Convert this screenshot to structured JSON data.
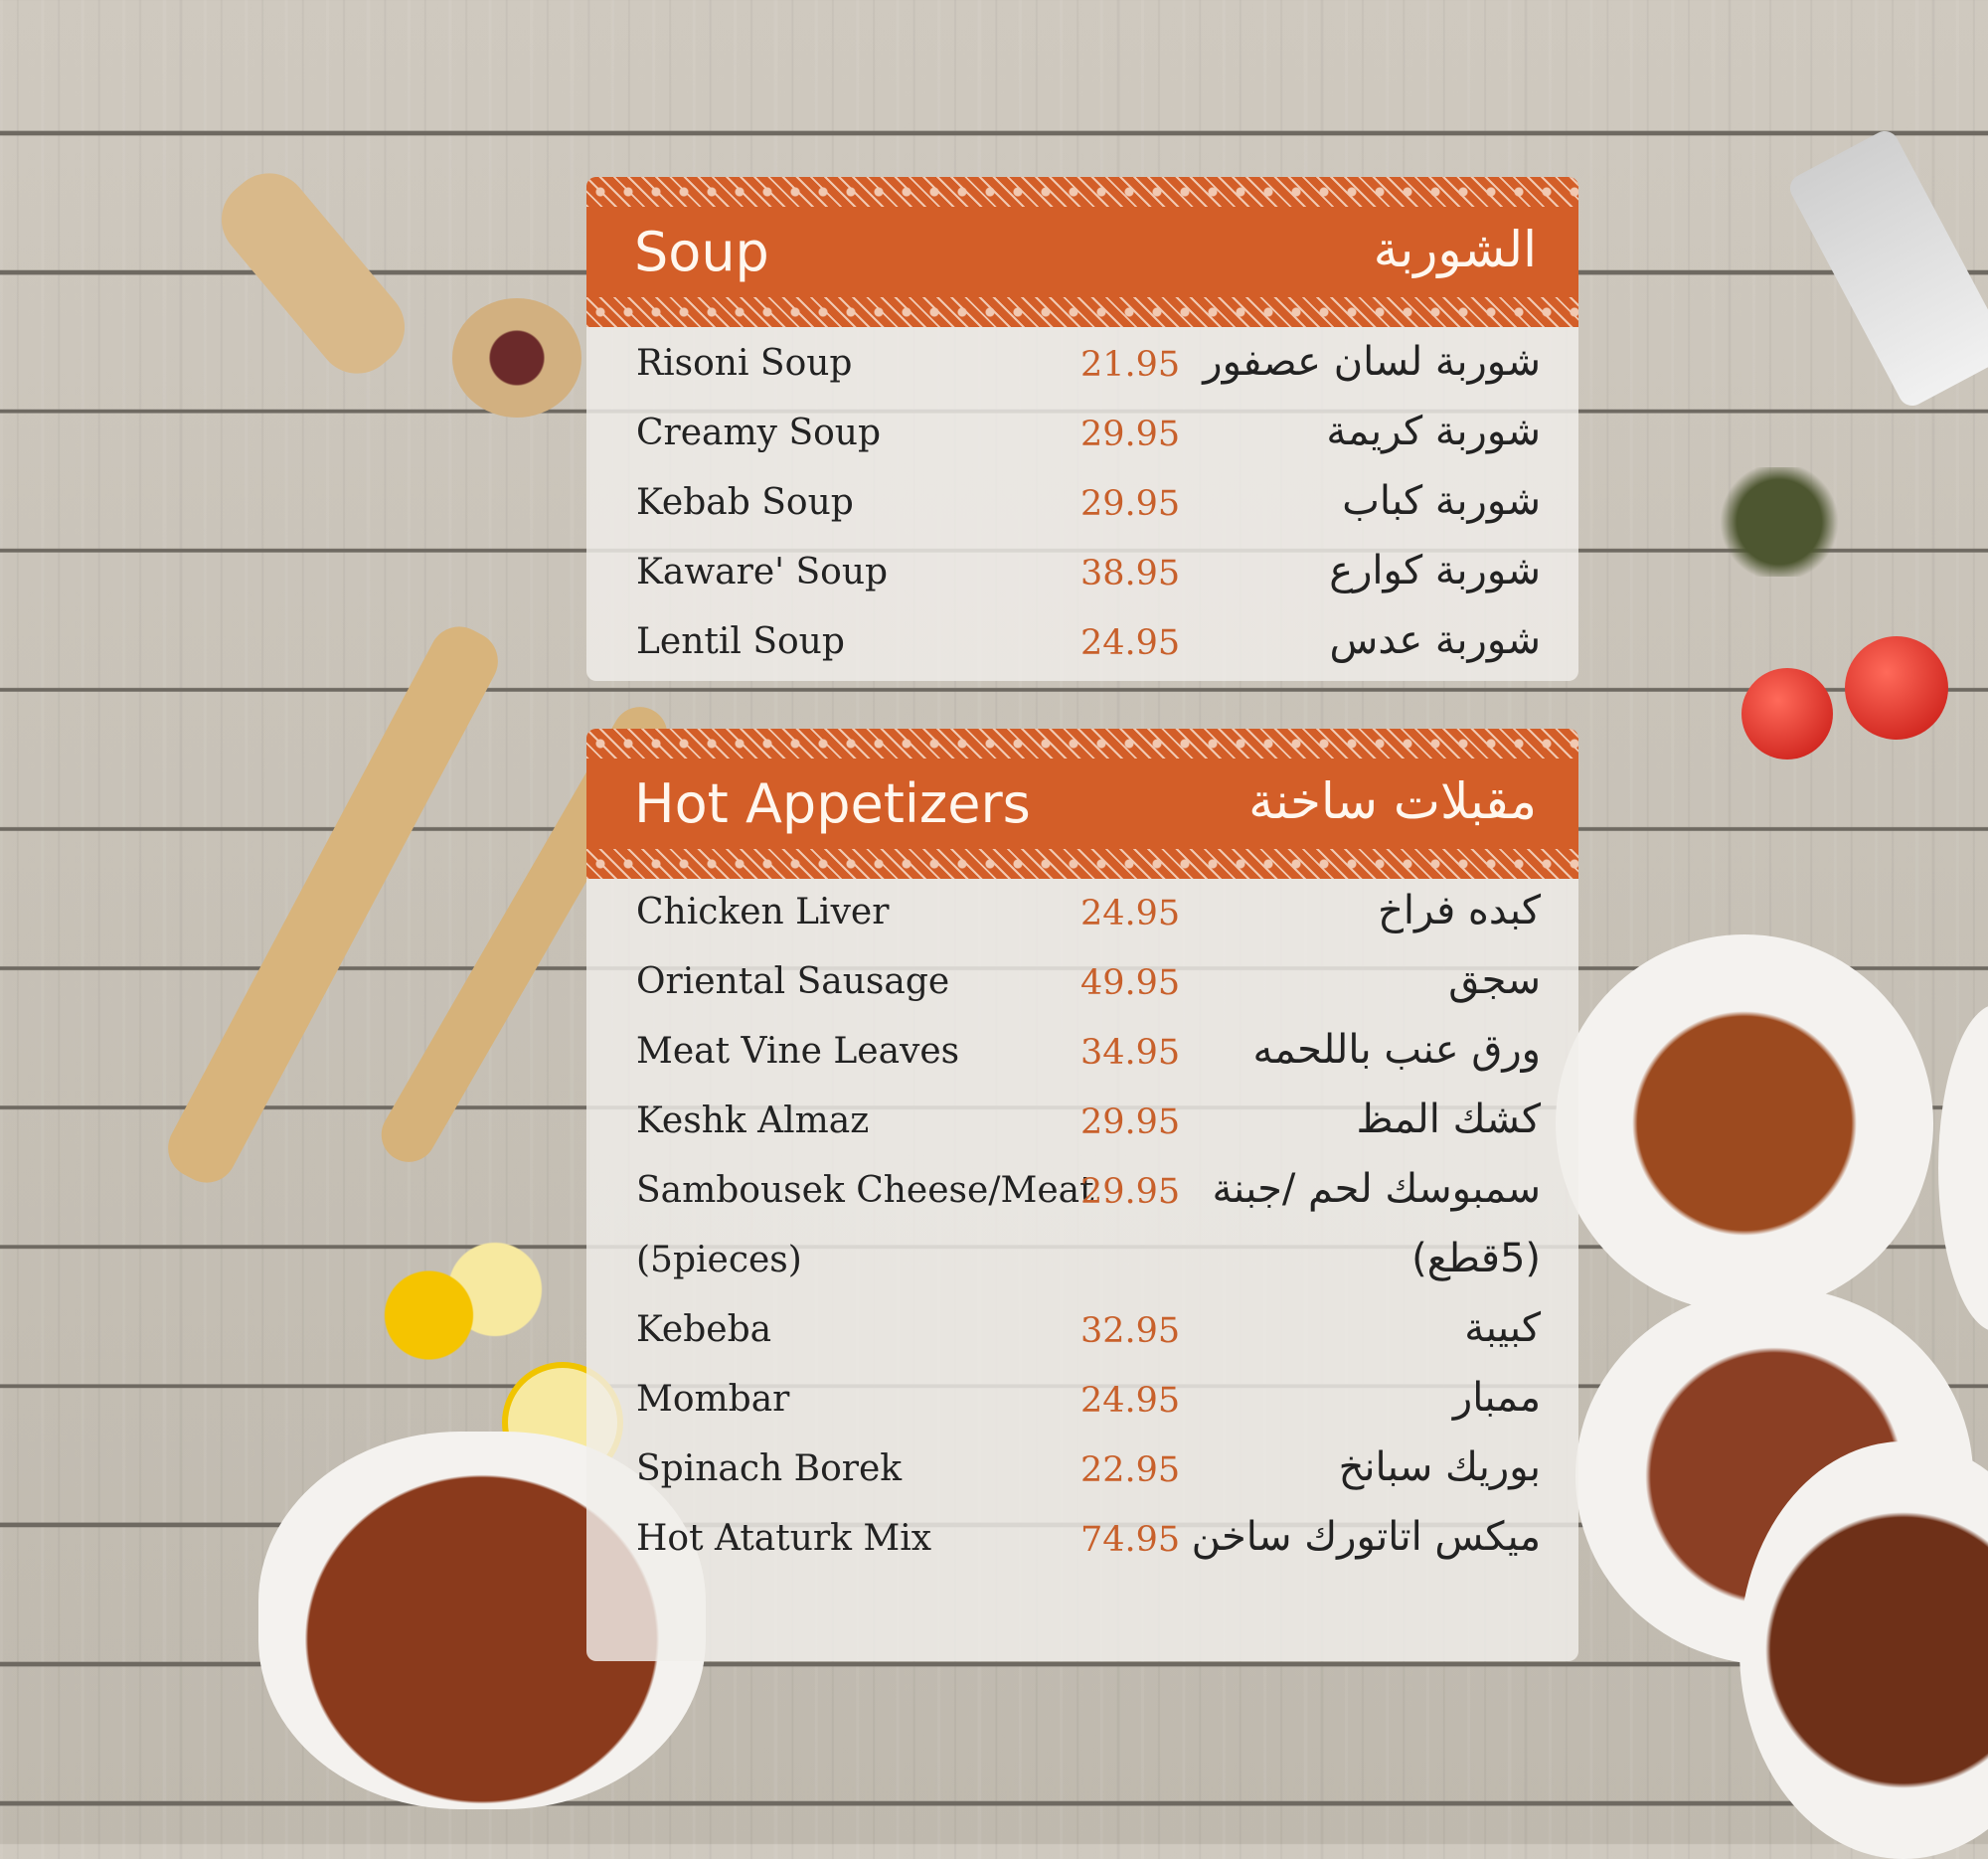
{
  "colors": {
    "header": "#d35e28",
    "price": "#c8602b",
    "text": "#222222"
  },
  "sections": [
    {
      "title_en": "Soup",
      "title_ar": "الشوربة",
      "items": [
        {
          "en": "Risoni Soup",
          "price": "21.95",
          "ar": "شوربة لسان عصفور"
        },
        {
          "en": "Creamy Soup",
          "price": "29.95",
          "ar": "شوربة كريمة"
        },
        {
          "en": "Kebab Soup",
          "price": "29.95",
          "ar": "شوربة كباب"
        },
        {
          "en": "Kaware' Soup",
          "price": "38.95",
          "ar": "شوربة كوارع"
        },
        {
          "en": "Lentil Soup",
          "price": "24.95",
          "ar": "شوربة عدس"
        }
      ]
    },
    {
      "title_en": "Hot Appetizers",
      "title_ar": "مقبلات ساخنة",
      "items": [
        {
          "en": "Chicken Liver",
          "price": "24.95",
          "ar": "كبده فراخ"
        },
        {
          "en": "Oriental Sausage",
          "price": "49.95",
          "ar": "سجق"
        },
        {
          "en": "Meat Vine Leaves",
          "price": "34.95",
          "ar": "ورق عنب باللحمه"
        },
        {
          "en": "Keshk Almaz",
          "price": "29.95",
          "ar": "كشك المظ"
        },
        {
          "en": "Sambousek Cheese/Meat",
          "price": "29.95",
          "ar": "سمبوسك لحم /جبنة"
        },
        {
          "en": "(5pieces)",
          "price": "",
          "ar": "(5قطع)"
        },
        {
          "en": "Kebeba",
          "price": "32.95",
          "ar": "كبيبة"
        },
        {
          "en": "Mombar",
          "price": "24.95",
          "ar": "ممبار"
        },
        {
          "en": "Spinach Borek",
          "price": "22.95",
          "ar": "بوريك سبانخ"
        },
        {
          "en": "Hot Ataturk Mix",
          "price": "74.95",
          "ar": "ميكس اتاتورك ساخن"
        }
      ]
    }
  ]
}
